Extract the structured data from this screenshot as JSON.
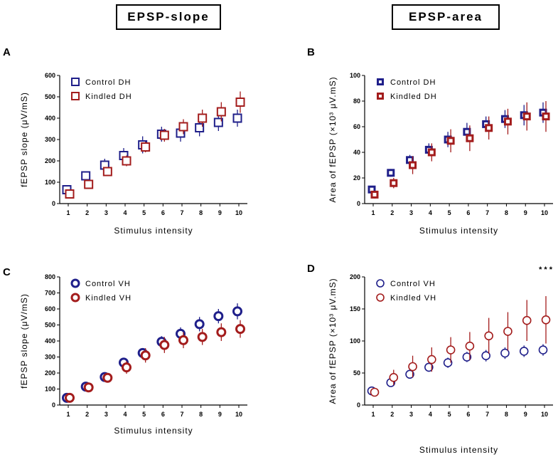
{
  "headers": {
    "left": "EPSP-slope",
    "right": "EPSP-area"
  },
  "colors": {
    "control": "#1f1f8a",
    "kindled": "#a31c1c",
    "axis": "#000000"
  },
  "chart_data": [
    {
      "panel": "A",
      "type": "scatter",
      "marker": "square",
      "filled": false,
      "ylabel": "fEPSP slope (μV/mS)",
      "xlabel": "Stimulus intensity",
      "ylim": [
        0,
        600
      ],
      "yticks": [
        0,
        100,
        200,
        300,
        400,
        500,
        600
      ],
      "categories": [
        "1",
        "2",
        "3",
        "4",
        "5",
        "6",
        "7",
        "8",
        "9",
        "10"
      ],
      "legend_position": "top-left",
      "significance": "",
      "series": [
        {
          "name": "Control DH",
          "group": "control",
          "values": [
            65,
            130,
            180,
            225,
            275,
            325,
            330,
            355,
            380,
            400
          ],
          "errors": [
            10,
            20,
            30,
            35,
            40,
            35,
            40,
            40,
            40,
            40
          ]
        },
        {
          "name": "Kindled DH",
          "group": "kindled",
          "values": [
            45,
            90,
            150,
            200,
            265,
            320,
            360,
            400,
            430,
            475
          ],
          "errors": [
            10,
            15,
            20,
            25,
            25,
            30,
            35,
            40,
            45,
            50
          ]
        }
      ]
    },
    {
      "panel": "B",
      "type": "scatter",
      "marker": "square",
      "filled": true,
      "ylabel": "Area of fEPSP (×10³ μV.mS)",
      "xlabel": "Stimulus intensity",
      "ylim": [
        0,
        100
      ],
      "yticks": [
        0,
        20,
        40,
        60,
        80,
        100
      ],
      "categories": [
        "1",
        "2",
        "3",
        "4",
        "5",
        "6",
        "7",
        "8",
        "9",
        "10"
      ],
      "legend_position": "top-left",
      "significance": "",
      "series": [
        {
          "name": "Control DH",
          "group": "control",
          "values": [
            11,
            24,
            34,
            42,
            50,
            56,
            62,
            66,
            69,
            71
          ],
          "errors": [
            2,
            3,
            4,
            5,
            6,
            7,
            6,
            7,
            8,
            8
          ]
        },
        {
          "name": "Kindled DH",
          "group": "kindled",
          "values": [
            7,
            16,
            30,
            40,
            49,
            51,
            59,
            64,
            68,
            68
          ],
          "errors": [
            3,
            4,
            7,
            7,
            9,
            10,
            9,
            10,
            11,
            12
          ]
        }
      ]
    },
    {
      "panel": "C",
      "type": "scatter",
      "marker": "circle",
      "filled": true,
      "ylabel": "fEPSP slope (μV/mS)",
      "xlabel": "Stimulus intensity",
      "ylim": [
        0,
        800
      ],
      "yticks": [
        0,
        100,
        200,
        300,
        400,
        500,
        600,
        700,
        800
      ],
      "categories": [
        "1",
        "2",
        "3",
        "4",
        "5",
        "6",
        "7",
        "8",
        "9",
        "10"
      ],
      "legend_position": "top-left",
      "significance": "",
      "series": [
        {
          "name": "Control VH",
          "group": "control",
          "values": [
            45,
            115,
            175,
            265,
            325,
            395,
            445,
            505,
            555,
            585
          ],
          "errors": [
            10,
            15,
            20,
            30,
            30,
            35,
            40,
            45,
            45,
            50
          ]
        },
        {
          "name": "Kindled VH",
          "group": "kindled",
          "values": [
            45,
            110,
            170,
            235,
            310,
            375,
            405,
            425,
            455,
            475
          ],
          "errors": [
            10,
            20,
            25,
            40,
            45,
            50,
            50,
            50,
            55,
            55
          ]
        }
      ]
    },
    {
      "panel": "D",
      "type": "scatter",
      "marker": "circle",
      "filled": false,
      "ylabel": "Area of fEPSP (×10³ μV.mS)",
      "xlabel": "Stimulus intensity",
      "ylim": [
        0,
        200
      ],
      "yticks": [
        0,
        50,
        100,
        150,
        200
      ],
      "categories": [
        "1",
        "2",
        "3",
        "4",
        "5",
        "6",
        "7",
        "8",
        "9",
        "10"
      ],
      "legend_position": "top-left",
      "significance": "***",
      "series": [
        {
          "name": "Control VH",
          "group": "control",
          "values": [
            22,
            35,
            48,
            59,
            66,
            75,
            77,
            81,
            84,
            86
          ],
          "errors": [
            3,
            5,
            6,
            7,
            8,
            8,
            9,
            9,
            9,
            9
          ]
        },
        {
          "name": "Kindled VH",
          "group": "kindled",
          "values": [
            20,
            43,
            60,
            71,
            86,
            92,
            108,
            115,
            132,
            133
          ],
          "errors": [
            5,
            12,
            17,
            19,
            20,
            22,
            28,
            30,
            32,
            37
          ]
        }
      ]
    }
  ]
}
